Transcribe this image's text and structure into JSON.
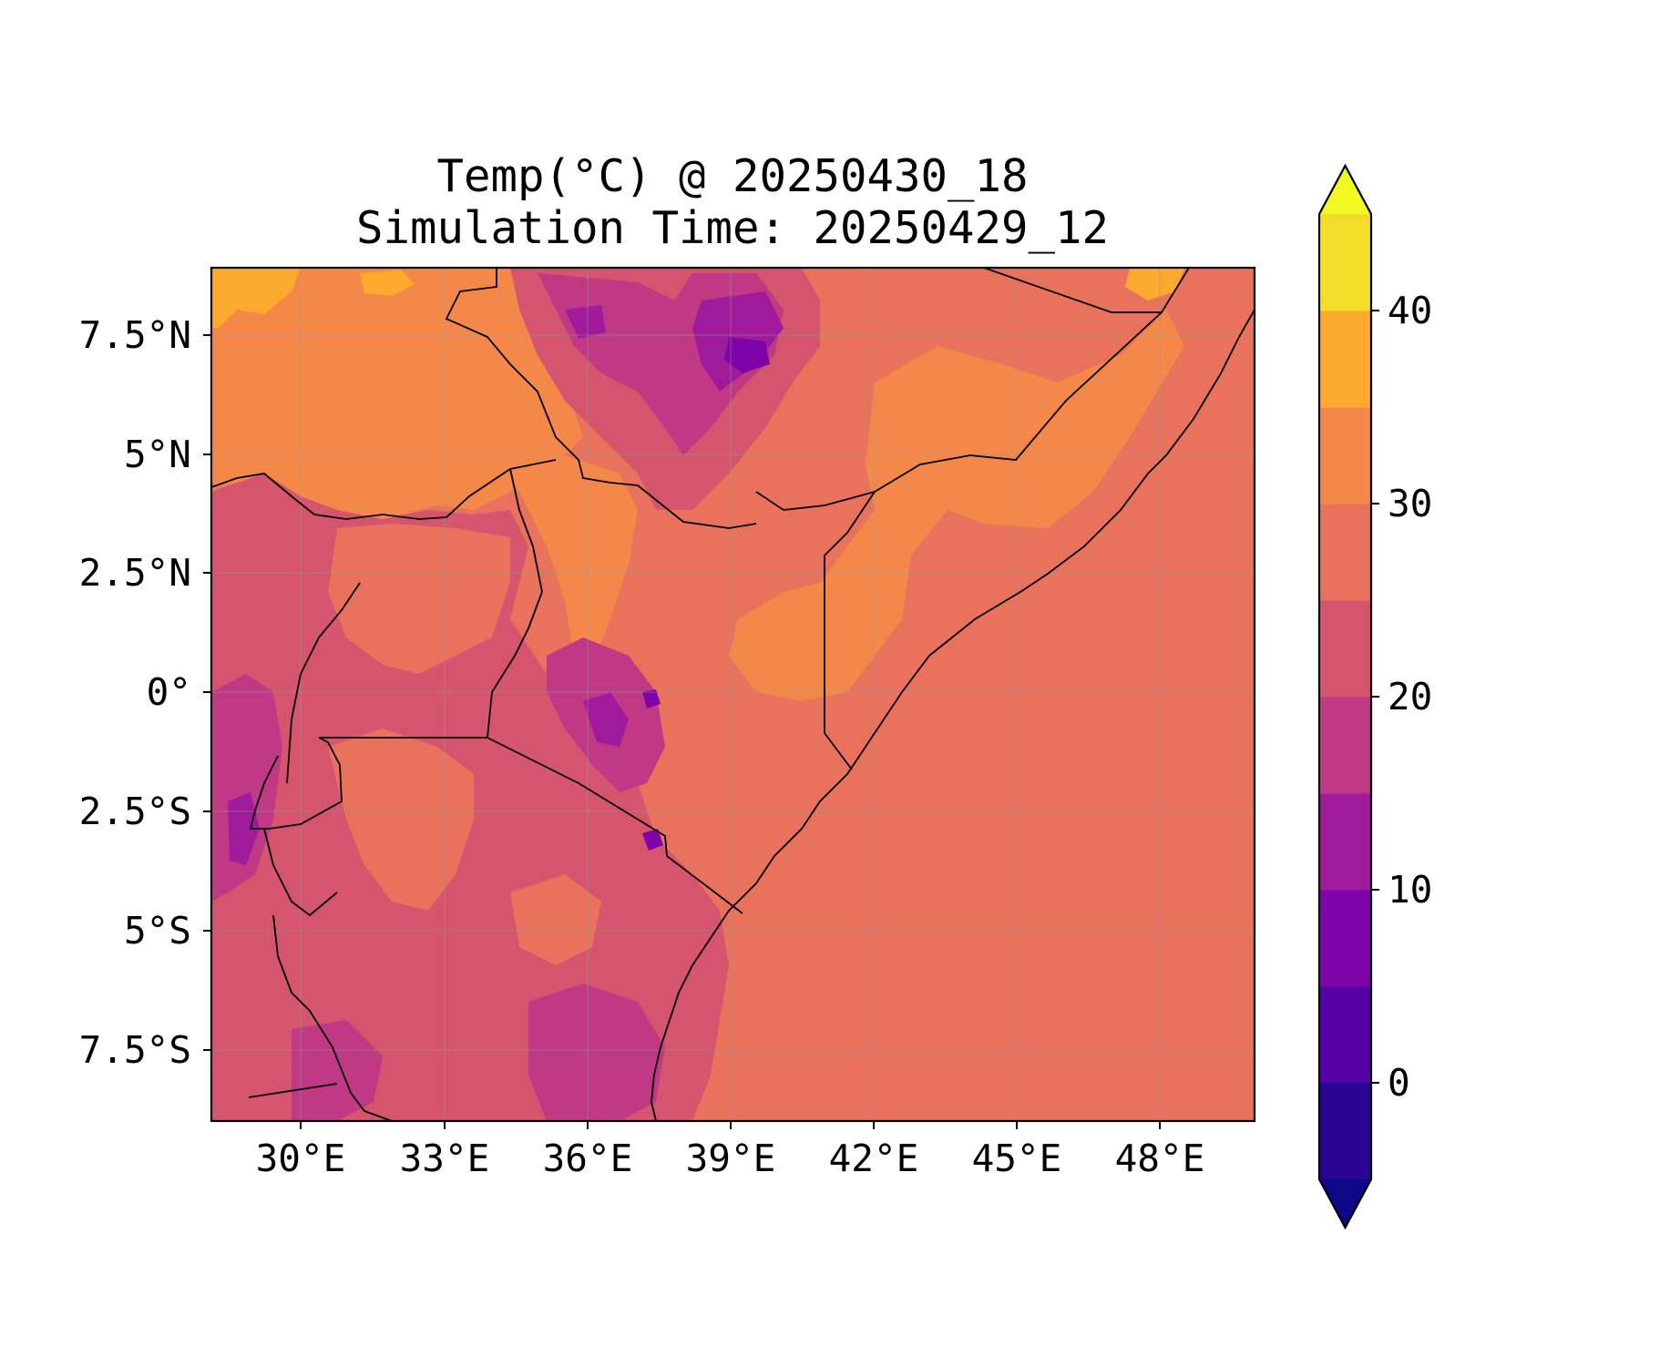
{
  "title": {
    "line1": "Temp(°C) @ 20250430_18",
    "line2": "Simulation Time: 20250429_12"
  },
  "map": {
    "variable": "Temperature",
    "units": "°C",
    "lon_range": [
      27.5,
      49.5
    ],
    "lat_range": [
      -9,
      9
    ],
    "x_ticks": [
      "30°E",
      "33°E",
      "36°E",
      "39°E",
      "42°E",
      "45°E",
      "48°E"
    ],
    "y_ticks": [
      "7.5°N",
      "5°N",
      "2.5°N",
      "0°",
      "2.5°S",
      "5°S",
      "7.5°S"
    ],
    "gridlines": true,
    "ocean_value_band": "25-30"
  },
  "colorbar": {
    "ticks": [
      "0",
      "10",
      "20",
      "30",
      "40"
    ],
    "levels": [
      -5,
      0,
      5,
      10,
      15,
      20,
      25,
      30,
      35,
      40,
      45
    ],
    "extend": "both",
    "colors": {
      "under": "#0d0887",
      "bands": [
        "#2a0593",
        "#5402a3",
        "#7e03a8",
        "#a01a9c",
        "#bf3984",
        "#d5546e",
        "#e8725c",
        "#f48849",
        "#fcaa2d",
        "#f2dd27"
      ],
      "over": "#f0f921"
    }
  }
}
